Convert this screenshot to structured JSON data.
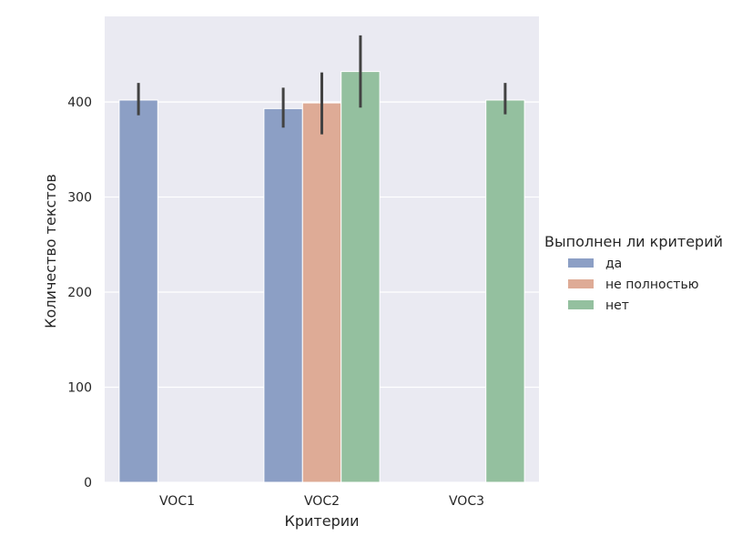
{
  "chart_data": {
    "type": "bar",
    "xlabel": "Критерии",
    "ylabel": "Количество текстов",
    "categories": [
      "VOC1",
      "VOC2",
      "VOC3"
    ],
    "ylim": [
      0,
      490
    ],
    "yticks": [
      0,
      100,
      200,
      300,
      400
    ],
    "grid": true,
    "legend": {
      "title": "Выполнен ли критерий",
      "placement": "right"
    },
    "series": [
      {
        "name": "да",
        "color": "#8c9fc5",
        "values": [
          402,
          393,
          null
        ],
        "error_low": [
          386,
          373,
          null
        ],
        "error_high": [
          420,
          415,
          null
        ]
      },
      {
        "name": "не полностью",
        "color": "#deab96",
        "values": [
          null,
          399,
          null
        ],
        "error_low": [
          null,
          366,
          null
        ],
        "error_high": [
          null,
          431,
          null
        ]
      },
      {
        "name": "нет",
        "color": "#94c09f",
        "values": [
          null,
          432,
          402
        ],
        "error_low": [
          null,
          394,
          387
        ],
        "error_high": [
          null,
          470,
          420
        ]
      }
    ]
  }
}
